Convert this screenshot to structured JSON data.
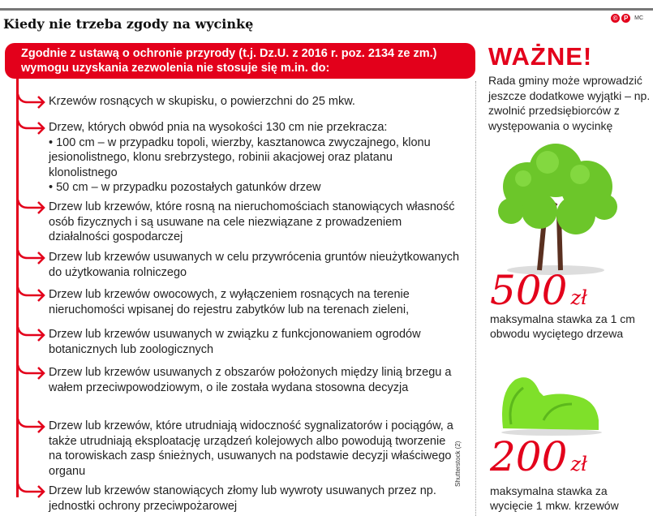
{
  "title": "Kiedy nie trzeba zgody na wycinkę",
  "logo": {
    "mark1": "©",
    "mark2": "P",
    "author": "MC"
  },
  "banner": {
    "line1": "Zgodnie z ustawą o ochronie przyrody (t.j. Dz.U. z 2016 r. poz. 2134 ze zm.)",
    "line2": "wymogu uzyskania zezwolenia nie stosuje się m.in. do:"
  },
  "items": [
    "Krzewów rosnących w skupisku, o powierzchni do 25 mkw.",
    "Drzew, których obwód pnia na wysokości 130 cm nie przekracza:\n• 100 cm – w przypadku topoli, wierzby, kasztanowca zwyczajnego, klonu jesionolistnego, klonu srebrzystego, robinii akacjowej oraz platanu klonolistnego\n• 50 cm – w przypadku pozostałych gatunków drzew",
    "Drzew lub krzewów, które rosną na nieruchomościach stanowiących własność osób fizycznych i są usuwane na cele niezwiązane z prowadzeniem działalności gospodarczej",
    "Drzew lub krzewów usuwanych w celu przywrócenia gruntów nieużytkowanych do użytkowania rolniczego",
    "Drzew lub krzewów owocowych, z wyłączeniem rosnących na terenie nieruchomości wpisanej do rejestru zabytków lub na terenach zieleni,",
    "Drzew lub krzewów usuwanych w związku z funkcjonowaniem ogrodów botanicznych lub zoologicznych",
    "Drzew lub krzewów usuwanych z obszarów położonych między linią brzegu a wałem przeciwpowodziowym, o ile została wydana stosowna decyzja",
    "Drzew lub krzewów, które utrudniają widoczność sygnalizatorów i pociągów, a także utrudniają eksploatację urządzeń kolejowych albo powodują tworzenie na torowiskach zasp śnieżnych, usuwanych na podstawie decyzji właściwego organu",
    "Drzew lub krzewów stanowiących złomy lub wywroty usuwanych przez np. jednostki ochrony przeciwpożarowej"
  ],
  "sidebar": {
    "heading": "WAŻNE!",
    "note": "Rada gminy może wprowadzić jeszcze dodatkowe wyjątki – np. zwolnić przedsiębiorców z występowania o wycinkę",
    "fine1": {
      "amount": "500",
      "unit": "zł",
      "caption": "maksymalna stawka za 1 cm obwodu wyciętego drzewa"
    },
    "fine2": {
      "amount": "200",
      "unit": "zł",
      "caption": "maksymalna stawka za wycięcie 1 mkw. krzewów"
    }
  },
  "credit": "Shutterstock (2)",
  "colors": {
    "accent": "#e3001b",
    "tree": "#6cc62a",
    "bush": "#7fe02a"
  }
}
